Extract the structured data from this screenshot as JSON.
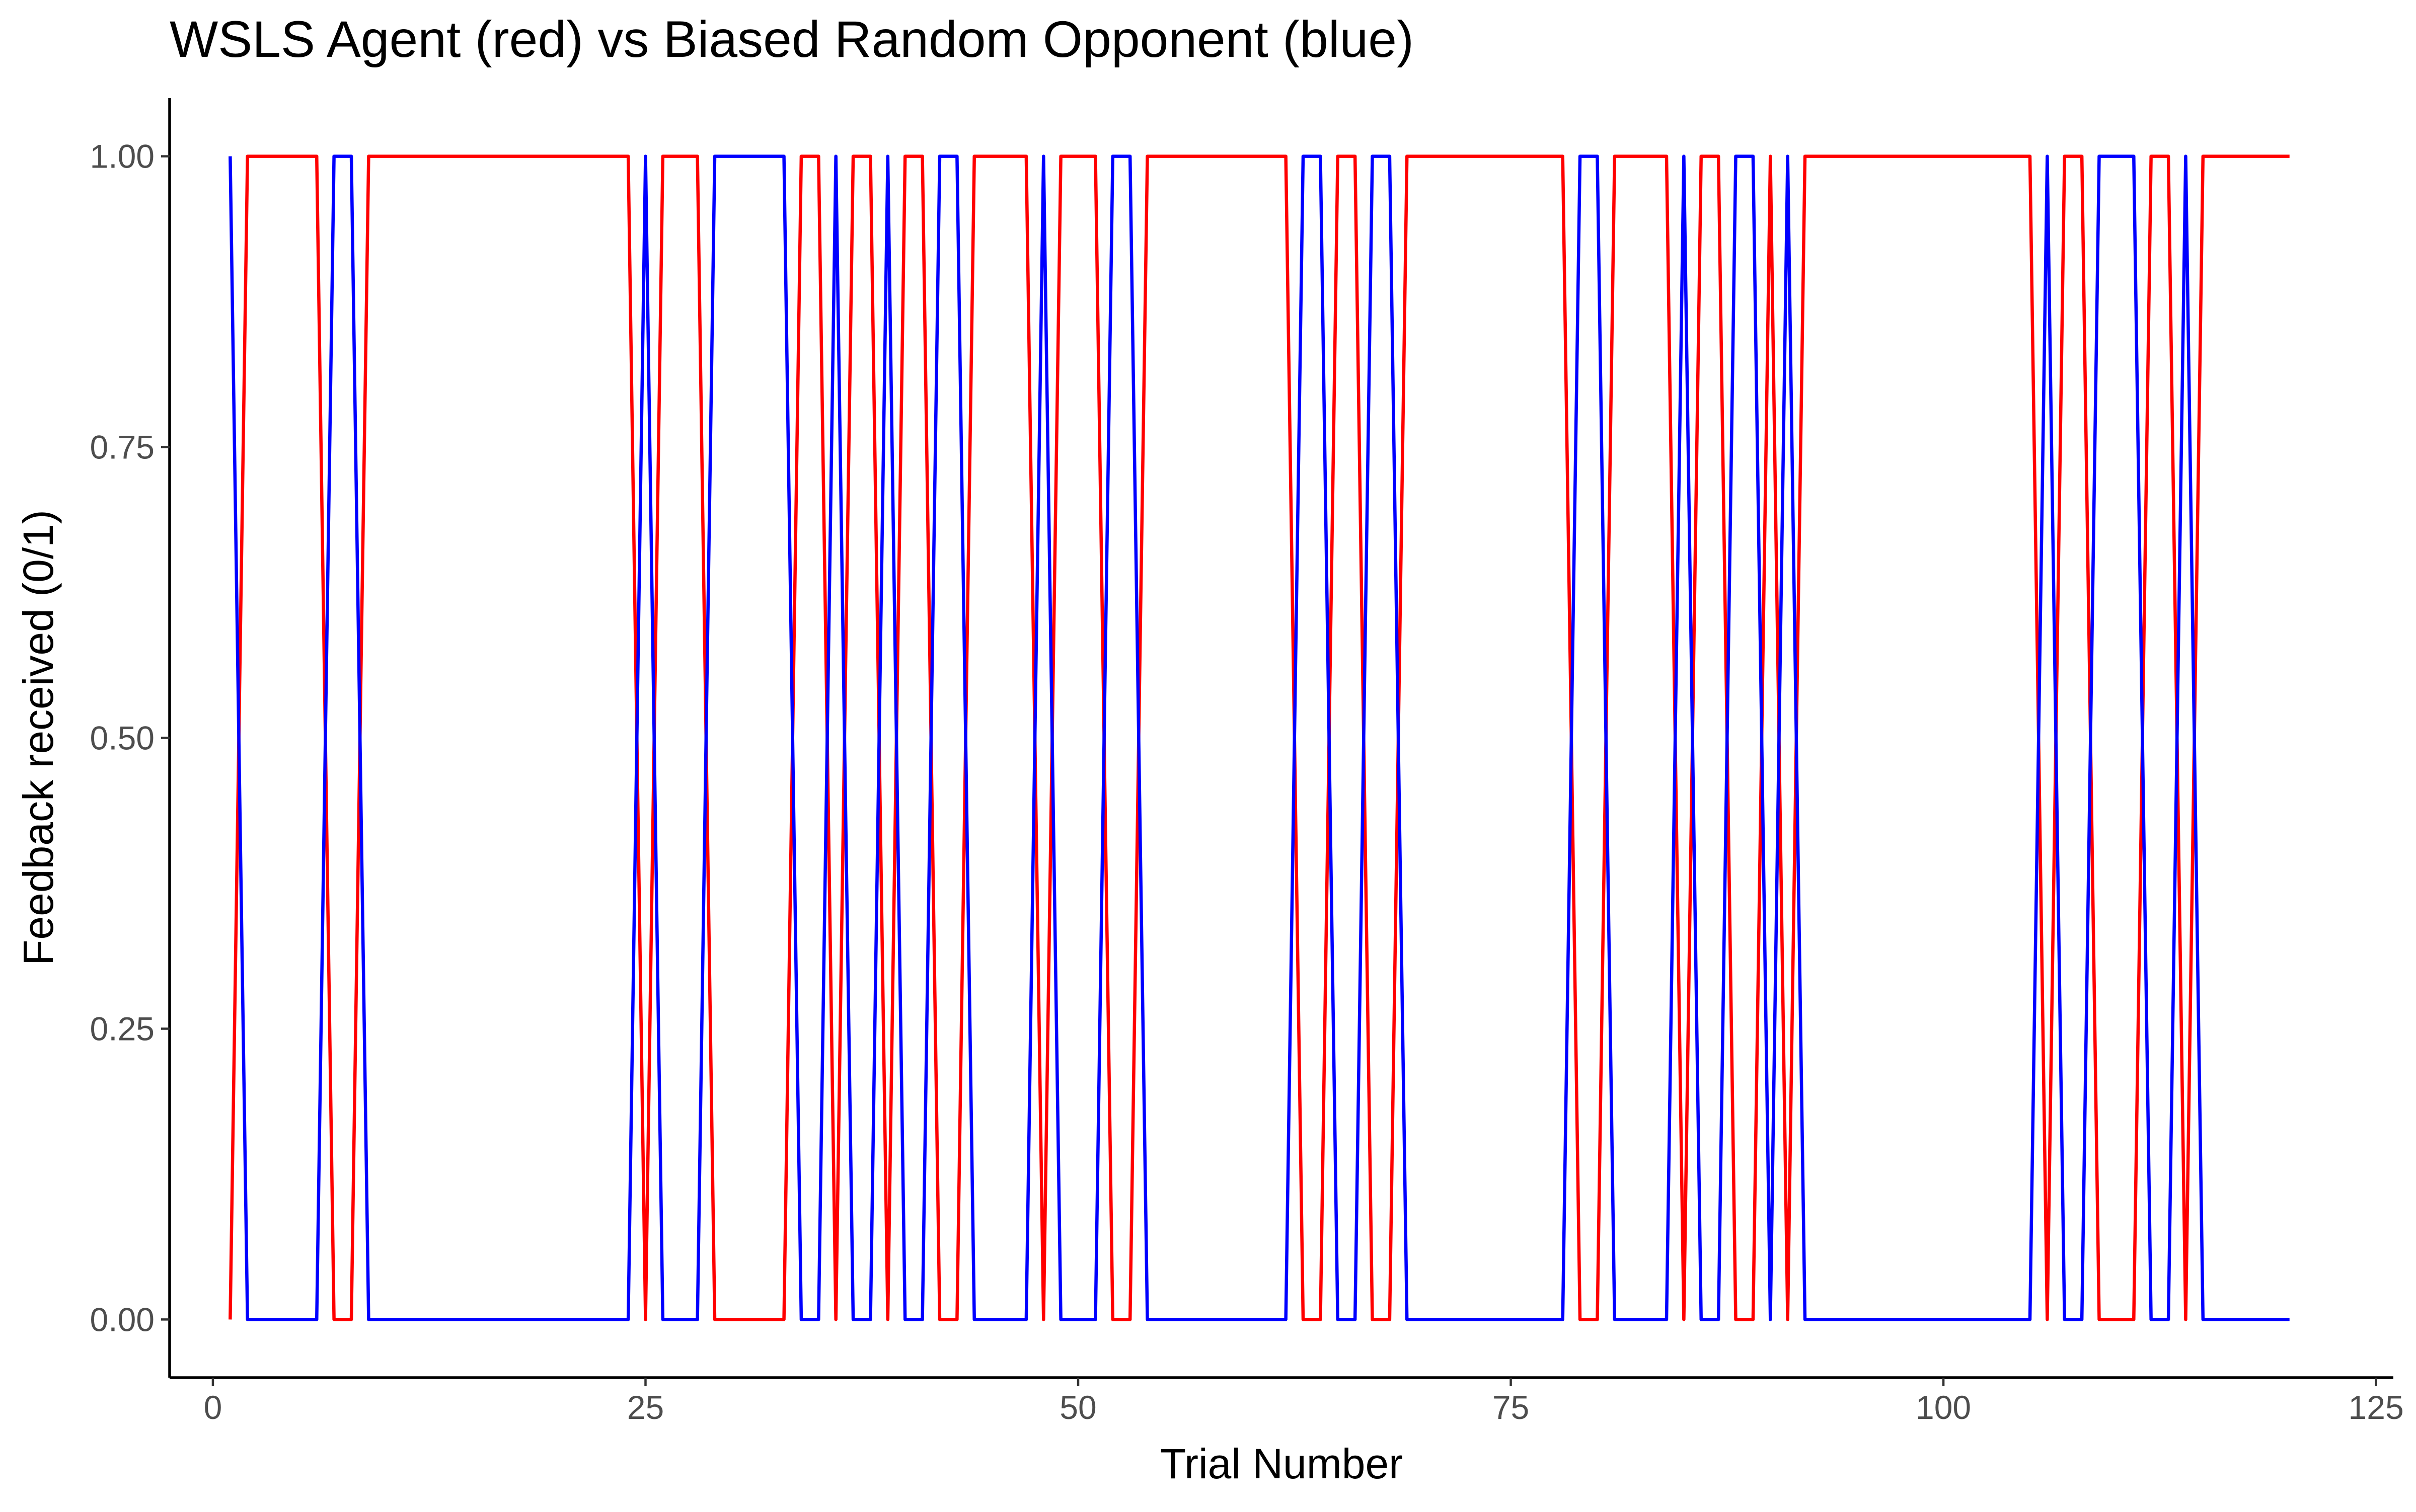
{
  "chart_data": {
    "type": "line",
    "title": "WSLS Agent (red) vs Biased Random Opponent (blue)",
    "xlabel": "Trial Number",
    "ylabel": "Feedback received (0/1)",
    "xlim": [
      -2.5,
      126
    ],
    "ylim": [
      -0.05,
      1.05
    ],
    "x_ticks": [
      0,
      25,
      50,
      75,
      100,
      125
    ],
    "x_tick_labels": [
      "0",
      "25",
      "50",
      "75",
      "100",
      "125"
    ],
    "y_ticks": [
      0,
      0.25,
      0.5,
      0.75,
      1
    ],
    "y_tick_labels": [
      "0.00",
      "0.25",
      "0.50",
      "0.75",
      "1.00"
    ],
    "grid": false,
    "legend": "none",
    "series": [
      {
        "color": "#ff0000",
        "x": [
          1,
          2,
          3,
          4,
          5,
          6,
          7,
          8,
          9,
          10,
          11,
          12,
          13,
          14,
          15,
          16,
          17,
          18,
          19,
          20,
          21,
          22,
          23,
          24,
          25,
          26,
          27,
          28,
          29,
          30,
          31,
          32,
          33,
          34,
          35,
          36,
          37,
          38,
          39,
          40,
          41,
          42,
          43,
          44,
          45,
          46,
          47,
          48,
          49,
          50,
          51,
          52,
          53,
          54,
          55,
          56,
          57,
          58,
          59,
          60,
          61,
          62,
          63,
          64,
          65,
          66,
          67,
          68,
          69,
          70,
          71,
          72,
          73,
          74,
          75,
          76,
          77,
          78,
          79,
          80,
          81,
          82,
          83,
          84,
          85,
          86,
          87,
          88,
          89,
          90,
          91,
          92,
          93,
          94,
          95,
          96,
          97,
          98,
          99,
          100,
          101,
          102,
          103,
          104,
          105,
          106,
          107,
          108,
          109,
          110,
          111,
          112,
          113,
          114,
          115,
          116,
          117,
          118,
          119,
          120
        ],
        "values": [
          0,
          1,
          1,
          1,
          1,
          1,
          0,
          0,
          1,
          1,
          1,
          1,
          1,
          1,
          1,
          1,
          1,
          1,
          1,
          1,
          1,
          1,
          1,
          1,
          0,
          1,
          1,
          1,
          0,
          0,
          0,
          0,
          0,
          1,
          1,
          0,
          1,
          1,
          0,
          1,
          1,
          0,
          0,
          1,
          1,
          1,
          1,
          0,
          1,
          1,
          1,
          0,
          0,
          1,
          1,
          1,
          1,
          1,
          1,
          1,
          1,
          1,
          0,
          0,
          1,
          1,
          0,
          0,
          1,
          1,
          1,
          1,
          1,
          1,
          1,
          1,
          1,
          1,
          0,
          0,
          1,
          1,
          1,
          1,
          0,
          1,
          1,
          0,
          0,
          1,
          0,
          1,
          1,
          1,
          1,
          1,
          1,
          1,
          1,
          1,
          1,
          1,
          1,
          1,
          1,
          0,
          1,
          1,
          0,
          0,
          0,
          1,
          1,
          0,
          1,
          1,
          1,
          1,
          1,
          1
        ]
      },
      {
        "color": "#0000ff",
        "x": [
          1,
          2,
          3,
          4,
          5,
          6,
          7,
          8,
          9,
          10,
          11,
          12,
          13,
          14,
          15,
          16,
          17,
          18,
          19,
          20,
          21,
          22,
          23,
          24,
          25,
          26,
          27,
          28,
          29,
          30,
          31,
          32,
          33,
          34,
          35,
          36,
          37,
          38,
          39,
          40,
          41,
          42,
          43,
          44,
          45,
          46,
          47,
          48,
          49,
          50,
          51,
          52,
          53,
          54,
          55,
          56,
          57,
          58,
          59,
          60,
          61,
          62,
          63,
          64,
          65,
          66,
          67,
          68,
          69,
          70,
          71,
          72,
          73,
          74,
          75,
          76,
          77,
          78,
          79,
          80,
          81,
          82,
          83,
          84,
          85,
          86,
          87,
          88,
          89,
          90,
          91,
          92,
          93,
          94,
          95,
          96,
          97,
          98,
          99,
          100,
          101,
          102,
          103,
          104,
          105,
          106,
          107,
          108,
          109,
          110,
          111,
          112,
          113,
          114,
          115,
          116,
          117,
          118,
          119,
          120
        ],
        "values": [
          1,
          0,
          0,
          0,
          0,
          0,
          1,
          1,
          0,
          0,
          0,
          0,
          0,
          0,
          0,
          0,
          0,
          0,
          0,
          0,
          0,
          0,
          0,
          0,
          1,
          0,
          0,
          0,
          1,
          1,
          1,
          1,
          1,
          0,
          0,
          1,
          0,
          0,
          1,
          0,
          0,
          1,
          1,
          0,
          0,
          0,
          0,
          1,
          0,
          0,
          0,
          1,
          1,
          0,
          0,
          0,
          0,
          0,
          0,
          0,
          0,
          0,
          1,
          1,
          0,
          0,
          1,
          1,
          0,
          0,
          0,
          0,
          0,
          0,
          0,
          0,
          0,
          0,
          1,
          1,
          0,
          0,
          0,
          0,
          1,
          0,
          0,
          1,
          1,
          0,
          1,
          0,
          0,
          0,
          0,
          0,
          0,
          0,
          0,
          0,
          0,
          0,
          0,
          0,
          0,
          1,
          0,
          0,
          1,
          1,
          1,
          0,
          0,
          1,
          0,
          0,
          0,
          0,
          0,
          0
        ]
      }
    ]
  }
}
